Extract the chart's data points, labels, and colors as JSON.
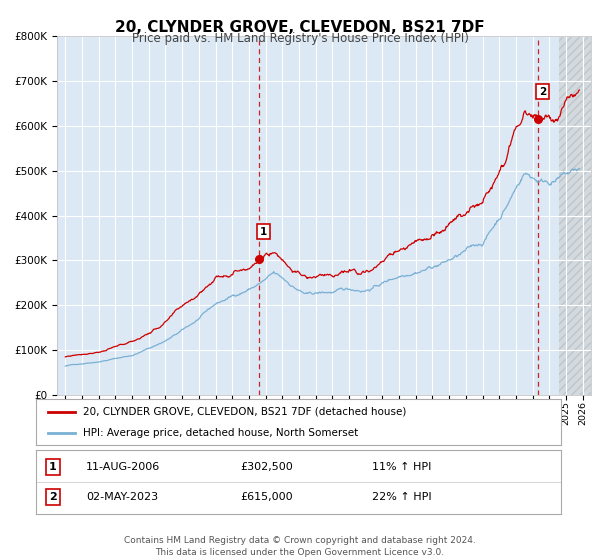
{
  "title": "20, CLYNDER GROVE, CLEVEDON, BS21 7DF",
  "subtitle": "Price paid vs. HM Land Registry's House Price Index (HPI)",
  "bg_color": "#dce9f5",
  "outer_bg_color": "#ffffff",
  "red_line_color": "#cc0000",
  "blue_line_color": "#7ab0d4",
  "grid_color": "#ffffff",
  "sale1_date": 2006.614,
  "sale1_price": 302500,
  "sale1_label": "1",
  "sale2_date": 2023.33,
  "sale2_price": 615000,
  "sale2_label": "2",
  "ylim": [
    0,
    800000
  ],
  "xlim_start": 1994.5,
  "xlim_end": 2026.5,
  "legend1": "20, CLYNDER GROVE, CLEVEDON, BS21 7DF (detached house)",
  "legend2": "HPI: Average price, detached house, North Somerset",
  "table_row1_num": "1",
  "table_row1_date": "11-AUG-2006",
  "table_row1_price": "£302,500",
  "table_row1_hpi": "11% ↑ HPI",
  "table_row2_num": "2",
  "table_row2_date": "02-MAY-2023",
  "table_row2_price": "£615,000",
  "table_row2_hpi": "22% ↑ HPI",
  "footer": "Contains HM Land Registry data © Crown copyright and database right 2024.\nThis data is licensed under the Open Government Licence v3.0."
}
